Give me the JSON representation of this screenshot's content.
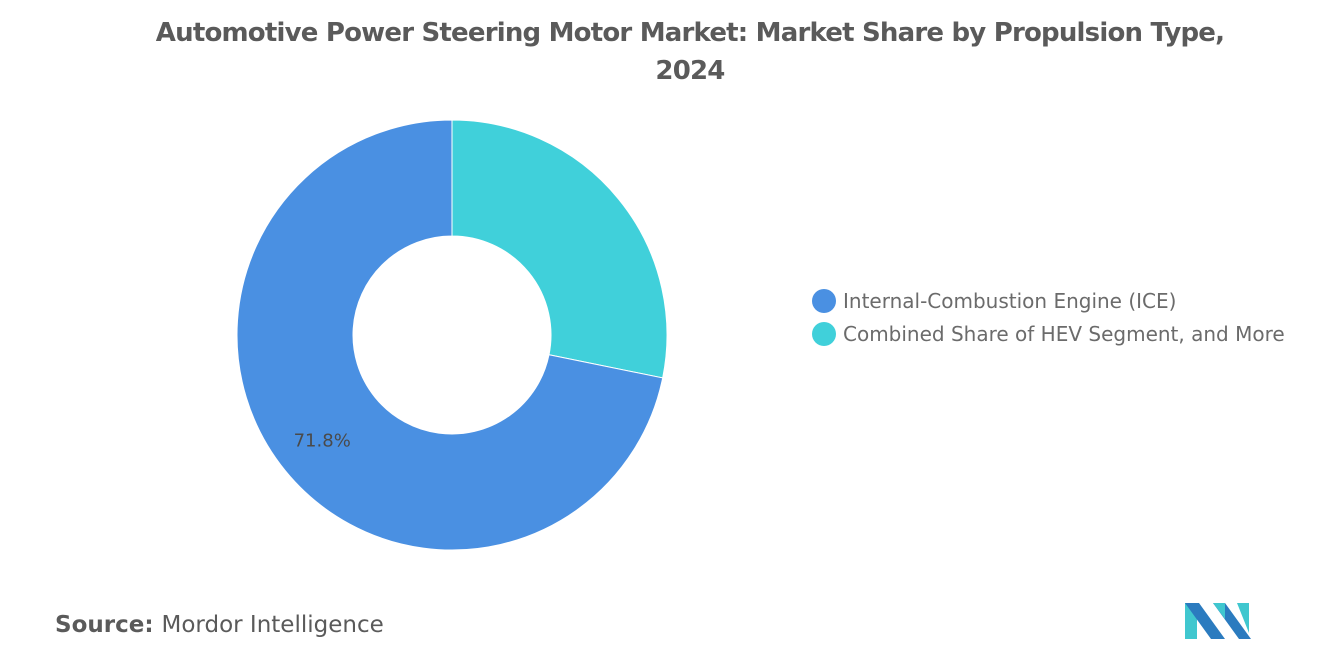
{
  "chart_data": {
    "type": "pie",
    "subtype": "donut",
    "title": "Automotive Power Steering Motor Market: Market Share by Propulsion Type, 2024",
    "categories": [
      "Internal-Combustion Engine (ICE)",
      "Combined Share of HEV Segment, and More"
    ],
    "values": [
      71.8,
      28.2
    ],
    "data_labels": [
      "71.8%",
      ""
    ],
    "colors": [
      "#4a90e2",
      "#40d0da"
    ],
    "legend_position": "right"
  },
  "title_lines": [
    "Automotive Power Steering Motor Market: Market Share by Propulsion Type,",
    "2024"
  ],
  "source": {
    "label": "Source:",
    "value": "Mordor Intelligence"
  },
  "logo": {
    "colors": [
      "#2b7bbf",
      "#40c7cf"
    ]
  }
}
